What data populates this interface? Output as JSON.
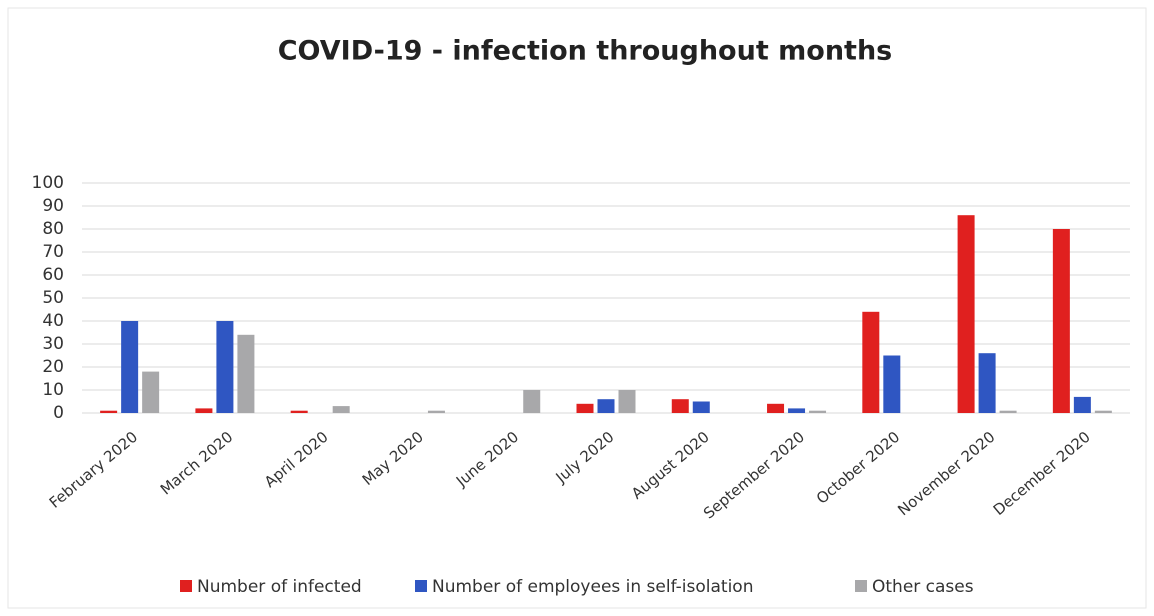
{
  "chart_data": {
    "type": "bar",
    "title": "COVID-19 - infection throughout months",
    "categories": [
      "February 2020",
      "March 2020",
      "April 2020",
      "May 2020",
      "June 2020",
      "July 2020",
      "August 2020",
      "September 2020",
      "October 2020",
      "November 2020",
      "December 2020"
    ],
    "series": [
      {
        "name": "Number of infected",
        "color": "#e0201f",
        "values": [
          1,
          2,
          1,
          0,
          0,
          4,
          6,
          4,
          44,
          86,
          80
        ]
      },
      {
        "name": "Number of employees in self-isolation",
        "color": "#2f56c2",
        "values": [
          40,
          40,
          0,
          0,
          0,
          6,
          5,
          2,
          25,
          26,
          7
        ]
      },
      {
        "name": "Other cases",
        "color": "#a8a8aa",
        "values": [
          18,
          34,
          3,
          1,
          10,
          10,
          0,
          1,
          0,
          1,
          1
        ]
      }
    ],
    "ylim": [
      0,
      100
    ],
    "yticks": [
      0,
      10,
      20,
      30,
      40,
      50,
      60,
      70,
      80,
      90,
      100
    ],
    "grid": true,
    "legend": "bottom"
  }
}
